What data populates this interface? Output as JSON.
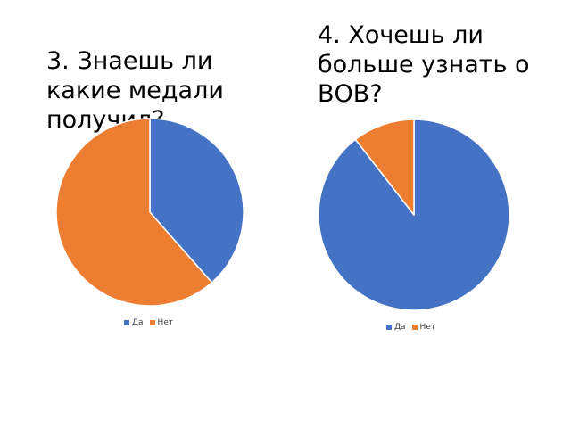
{
  "chart_data": [
    {
      "type": "pie",
      "title": "3. Знаешь ли какие медали получил?",
      "categories": [
        "Да",
        "Нет"
      ],
      "values": [
        38.5,
        61.5
      ],
      "colors": [
        "#4472C4",
        "#ED7D31"
      ],
      "legend_position": "bottom"
    },
    {
      "type": "pie",
      "title": "4. Хочешь ли больше узнать о ВОВ?",
      "categories": [
        "Да",
        "Нет"
      ],
      "values": [
        89.5,
        10.5
      ],
      "colors": [
        "#4472C4",
        "#ED7D31"
      ],
      "legend_position": "bottom"
    }
  ]
}
